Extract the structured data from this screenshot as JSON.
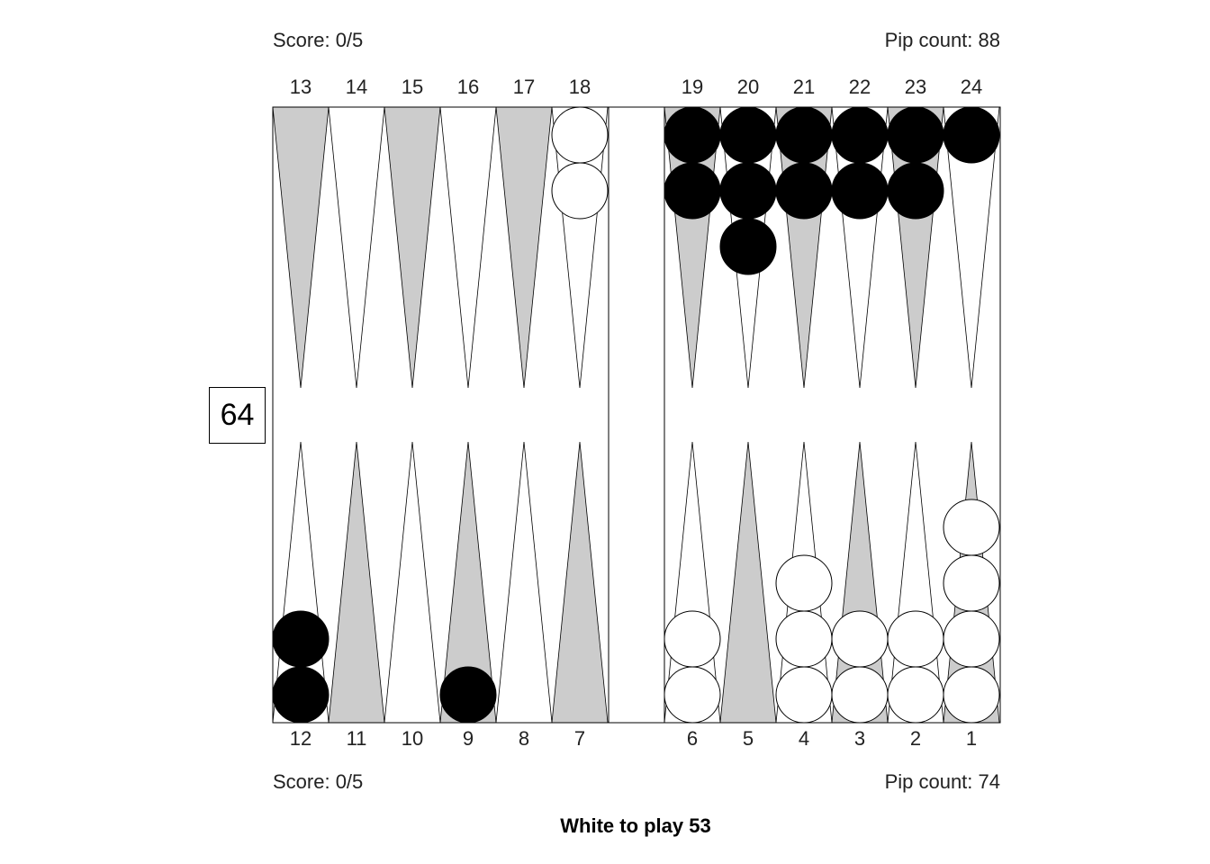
{
  "top_player": {
    "score": "Score: 0/5",
    "pip_count": "Pip count: 88",
    "color": "black"
  },
  "bottom_player": {
    "score": "Score: 0/5",
    "pip_count": "Pip count: 74",
    "color": "white"
  },
  "status": "White to play 53",
  "cube_value": "64",
  "point_labels": {
    "top": [
      "13",
      "14",
      "15",
      "16",
      "17",
      "18",
      "19",
      "20",
      "21",
      "22",
      "23",
      "24"
    ],
    "bottom": [
      "12",
      "11",
      "10",
      "9",
      "8",
      "7",
      "6",
      "5",
      "4",
      "3",
      "2",
      "1"
    ]
  },
  "colors": {
    "dark_point": "#cccccc",
    "light_point": "#ffffff",
    "black_checker": "#000000",
    "white_checker": "#ffffff",
    "board_line": "#000000"
  },
  "checkers": [
    {
      "point": 18,
      "color": "white",
      "count": 2
    },
    {
      "point": 19,
      "color": "black",
      "count": 2
    },
    {
      "point": 20,
      "color": "black",
      "count": 3
    },
    {
      "point": 21,
      "color": "black",
      "count": 2
    },
    {
      "point": 22,
      "color": "black",
      "count": 2
    },
    {
      "point": 23,
      "color": "black",
      "count": 2
    },
    {
      "point": 24,
      "color": "black",
      "count": 1
    },
    {
      "point": 12,
      "color": "black",
      "count": 2
    },
    {
      "point": 9,
      "color": "black",
      "count": 1
    },
    {
      "point": 6,
      "color": "white",
      "count": 2
    },
    {
      "point": 4,
      "color": "white",
      "count": 3
    },
    {
      "point": 3,
      "color": "white",
      "count": 2
    },
    {
      "point": 2,
      "color": "white",
      "count": 2
    },
    {
      "point": 1,
      "color": "white",
      "count": 4
    }
  ]
}
